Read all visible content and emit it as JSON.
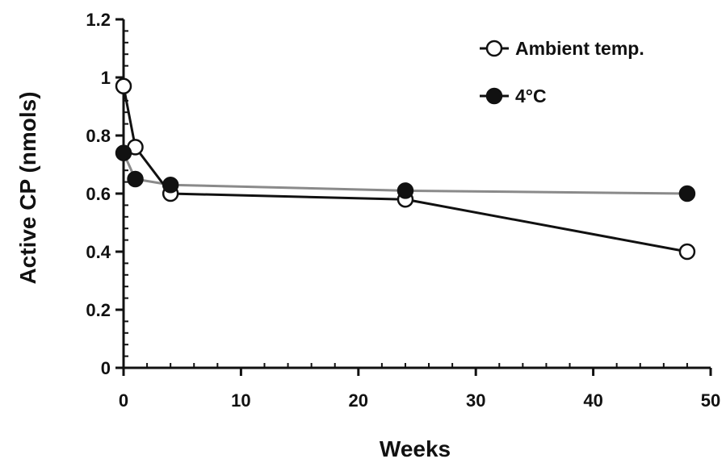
{
  "chart_data": {
    "type": "line",
    "title": "",
    "xlabel": "Weeks",
    "ylabel": "Active CP (nmols)",
    "xlim": [
      0,
      50
    ],
    "ylim": [
      0,
      1.2
    ],
    "xticks": [
      "0",
      "10",
      "20",
      "30",
      "40",
      "50"
    ],
    "yticks": [
      "0",
      "0.2",
      "0.4",
      "0.6",
      "0.8",
      "1",
      "1.2"
    ],
    "grid": false,
    "legend_position": "top-right",
    "series": [
      {
        "name": "Ambient temp.",
        "marker": "open-circle",
        "line_color": "#111111",
        "x": [
          0,
          1,
          4,
          24,
          48
        ],
        "y": [
          0.97,
          0.76,
          0.6,
          0.58,
          0.4
        ]
      },
      {
        "name": "4°C",
        "marker": "filled-circle",
        "line_color": "#8a8a8a",
        "x": [
          0,
          1,
          4,
          24,
          48
        ],
        "y": [
          0.74,
          0.65,
          0.63,
          0.61,
          0.6
        ]
      }
    ]
  }
}
